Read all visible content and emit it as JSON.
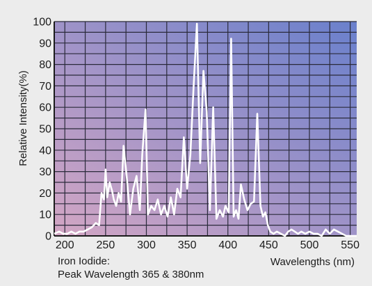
{
  "chart_data": {
    "type": "line",
    "title": "",
    "ylabel": "Relative Intensity(%)",
    "xlabel": "Wavelengths (nm)",
    "xlim": [
      187,
      558
    ],
    "ylim": [
      0,
      100
    ],
    "x_ticks": [
      200,
      250,
      300,
      350,
      400,
      450,
      500,
      550
    ],
    "y_ticks": [
      0,
      10,
      20,
      30,
      40,
      50,
      60,
      70,
      80,
      90,
      100
    ],
    "grid": true,
    "background_gradient": [
      "#d3a6c4",
      "#6a80cc"
    ],
    "line_color": "#ffffff",
    "series": [
      {
        "x": [
          187,
          193,
          198,
          203,
          208,
          213,
          218,
          223,
          228,
          233,
          238,
          242,
          245,
          248,
          250,
          252,
          255,
          258,
          260,
          263,
          266,
          269,
          272,
          276,
          280,
          284,
          288,
          292,
          295,
          299,
          302,
          306,
          310,
          314,
          318,
          322,
          326,
          330,
          334,
          338,
          342,
          346,
          350,
          354,
          358,
          362,
          366,
          370,
          374,
          378,
          382,
          386,
          390,
          394,
          397,
          401,
          404,
          407,
          410,
          413,
          416,
          420,
          424,
          428,
          432,
          436,
          440,
          443,
          446,
          449,
          452,
          456,
          460,
          465,
          470,
          474,
          478,
          482,
          486,
          490,
          495,
          500,
          505,
          510,
          515,
          520,
          525,
          530,
          535,
          540,
          545,
          550,
          555,
          558
        ],
        "y": [
          1,
          2,
          1,
          1,
          2,
          1,
          2,
          2,
          3,
          4,
          6,
          5,
          20,
          17,
          31,
          18,
          25,
          21,
          17,
          14,
          20,
          16,
          42,
          27,
          10,
          22,
          28,
          12,
          38,
          59,
          10,
          14,
          12,
          17,
          10,
          14,
          9,
          18,
          10,
          22,
          18,
          46,
          22,
          38,
          70,
          99,
          34,
          77,
          58,
          12,
          60,
          8,
          12,
          9,
          14,
          11,
          92,
          9,
          12,
          8,
          24,
          17,
          12,
          15,
          16,
          57,
          14,
          9,
          11,
          5,
          2,
          1,
          2,
          1,
          0,
          2,
          3,
          2,
          1,
          2,
          1,
          2,
          1,
          1,
          0,
          3,
          1,
          3,
          2,
          1,
          0,
          0,
          0,
          0
        ]
      }
    ]
  },
  "caption": {
    "line1": "Iron Iodide:",
    "line2": "Peak Wavelength 365 & 380nm"
  }
}
